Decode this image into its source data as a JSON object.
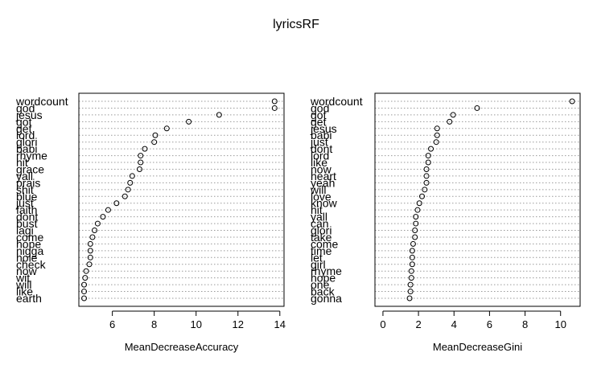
{
  "title": "lyricsRF",
  "chart_data": [
    {
      "type": "scatter",
      "xlabel": "MeanDecreaseAccuracy",
      "xlim": [
        4.4,
        14.2
      ],
      "xticks": [
        6,
        8,
        10,
        12,
        14
      ],
      "labels": [
        "wordcount",
        "god",
        "jesus",
        "got",
        "get",
        "lord",
        "glori",
        "babi",
        "rhyme",
        "hit",
        "grace",
        "yall",
        "prais",
        "shit",
        "blue",
        "just",
        "faith",
        "dont",
        "bust",
        "lagi",
        "come",
        "hope",
        "nigga",
        "hole",
        "check",
        "now",
        "wit",
        "will",
        "like",
        "earth"
      ],
      "values": [
        13.75,
        13.75,
        11.1,
        9.65,
        8.6,
        8.05,
        8.0,
        7.55,
        7.35,
        7.35,
        7.3,
        6.95,
        6.85,
        6.75,
        6.6,
        6.2,
        5.8,
        5.55,
        5.3,
        5.15,
        5.05,
        4.95,
        4.95,
        4.95,
        4.9,
        4.75,
        4.7,
        4.65,
        4.65,
        4.65
      ]
    },
    {
      "type": "scatter",
      "xlabel": "MeanDecreaseGini",
      "xlim": [
        -0.45,
        11.1
      ],
      "xticks": [
        0,
        2,
        4,
        6,
        8,
        10
      ],
      "labels": [
        "wordcount",
        "god",
        "got",
        "get",
        "jesus",
        "babi",
        "just",
        "dont",
        "lord",
        "like",
        "now",
        "heart",
        "yeah",
        "will",
        "love",
        "know",
        "hit",
        "yall",
        "can",
        "glori",
        "take",
        "come",
        "time",
        "let",
        "girl",
        "rhyme",
        "hope",
        "one",
        "back",
        "gonna"
      ],
      "values": [
        10.65,
        5.3,
        3.95,
        3.75,
        3.05,
        3.05,
        3.0,
        2.7,
        2.55,
        2.55,
        2.45,
        2.45,
        2.45,
        2.35,
        2.2,
        2.05,
        1.95,
        1.85,
        1.85,
        1.8,
        1.8,
        1.7,
        1.65,
        1.65,
        1.65,
        1.6,
        1.6,
        1.55,
        1.55,
        1.5
      ]
    }
  ]
}
